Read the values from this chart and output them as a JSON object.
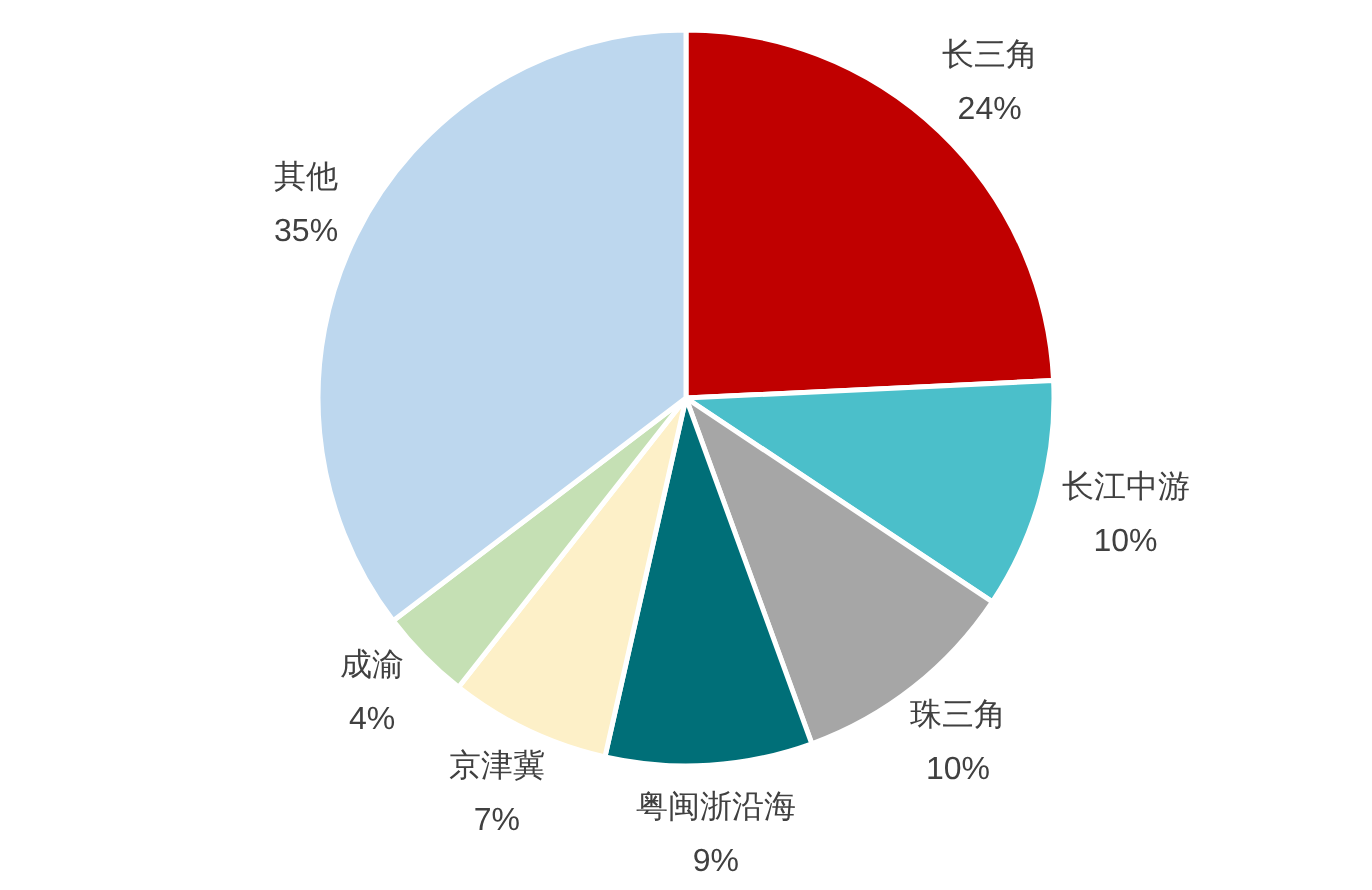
{
  "chart_data": {
    "type": "pie",
    "categories": [
      "长三角",
      "长江中游",
      "珠三角",
      "粤闽浙沿海",
      "京津冀",
      "成渝",
      "其他"
    ],
    "values": [
      24,
      10,
      10,
      9,
      7,
      4,
      35
    ],
    "value_labels": [
      "24%",
      "10%",
      "10%",
      "9%",
      "7%",
      "4%",
      "35%"
    ],
    "colors": [
      "#c00000",
      "#4bbfca",
      "#a6a6a6",
      "#006f78",
      "#fdf0c8",
      "#c5e0b4",
      "#bdd7ee"
    ]
  }
}
